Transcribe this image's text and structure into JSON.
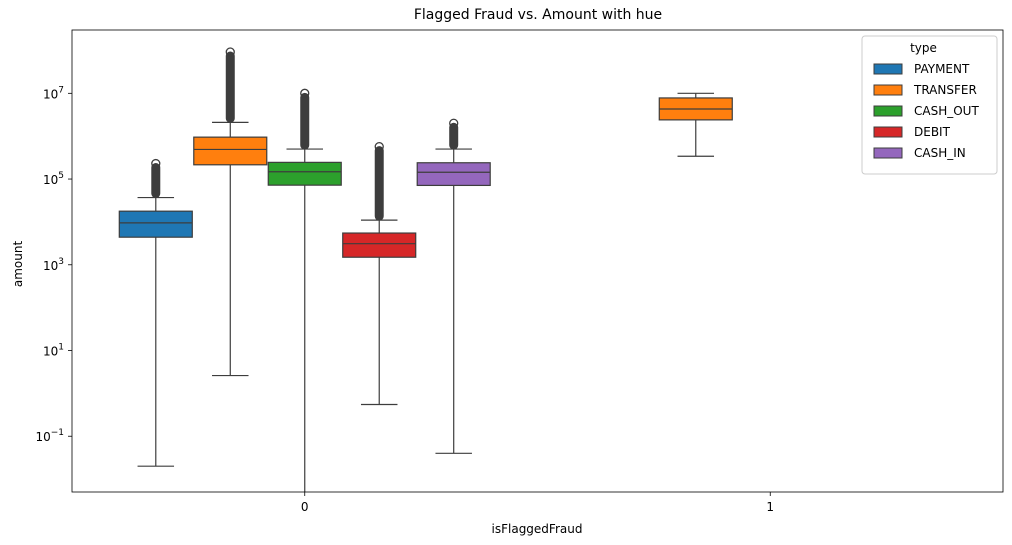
{
  "chart_data": {
    "type": "box",
    "title": "Flagged Fraud vs. Amount with hue",
    "xlabel": "isFlaggedFraud",
    "ylabel": "amount",
    "yscale": "log",
    "ylim": [
      0.005,
      300000000
    ],
    "categories": [
      "0",
      "1"
    ],
    "y_ticks": [
      {
        "value": 0.1,
        "base": "10",
        "exp": "−1"
      },
      {
        "value": 10,
        "base": "10",
        "exp": "1"
      },
      {
        "value": 1000,
        "base": "10",
        "exp": "3"
      },
      {
        "value": 100000,
        "base": "10",
        "exp": "5"
      },
      {
        "value": 10000000,
        "base": "10",
        "exp": "7"
      }
    ],
    "legend": {
      "title": "type",
      "placement": "top-right"
    },
    "hues": [
      {
        "name": "PAYMENT",
        "color": "#1f77b4"
      },
      {
        "name": "TRANSFER",
        "color": "#ff7f0e"
      },
      {
        "name": "CASH_OUT",
        "color": "#2ca02c"
      },
      {
        "name": "DEBIT",
        "color": "#d62728"
      },
      {
        "name": "CASH_IN",
        "color": "#9467bd"
      }
    ],
    "boxes": [
      {
        "category": "0",
        "hue": "PAYMENT",
        "whisker_low": 0.02,
        "q1": 4400,
        "median": 9500,
        "q3": 17800,
        "whisker_high": 37000,
        "outliers_max": 230000
      },
      {
        "category": "0",
        "hue": "TRANSFER",
        "whisker_low": 2.6,
        "q1": 215000,
        "median": 490000,
        "q3": 950000,
        "whisker_high": 2100000,
        "outliers_max": 92000000
      },
      {
        "category": "0",
        "hue": "CASH_OUT",
        "whisker_low": 0.005,
        "q1": 72000,
        "median": 148000,
        "q3": 245000,
        "whisker_high": 500000,
        "outliers_max": 10000000
      },
      {
        "category": "0",
        "hue": "DEBIT",
        "whisker_low": 0.55,
        "q1": 1500,
        "median": 3100,
        "q3": 5500,
        "whisker_high": 11000,
        "outliers_max": 570000
      },
      {
        "category": "0",
        "hue": "CASH_IN",
        "whisker_low": 0.04,
        "q1": 71000,
        "median": 144000,
        "q3": 240000,
        "whisker_high": 500000,
        "outliers_max": 2000000
      },
      {
        "category": "1",
        "hue": "TRANSFER",
        "whisker_low": 340000,
        "q1": 2400000,
        "median": 4300000,
        "q3": 7800000,
        "whisker_high": 10000000
      }
    ]
  }
}
